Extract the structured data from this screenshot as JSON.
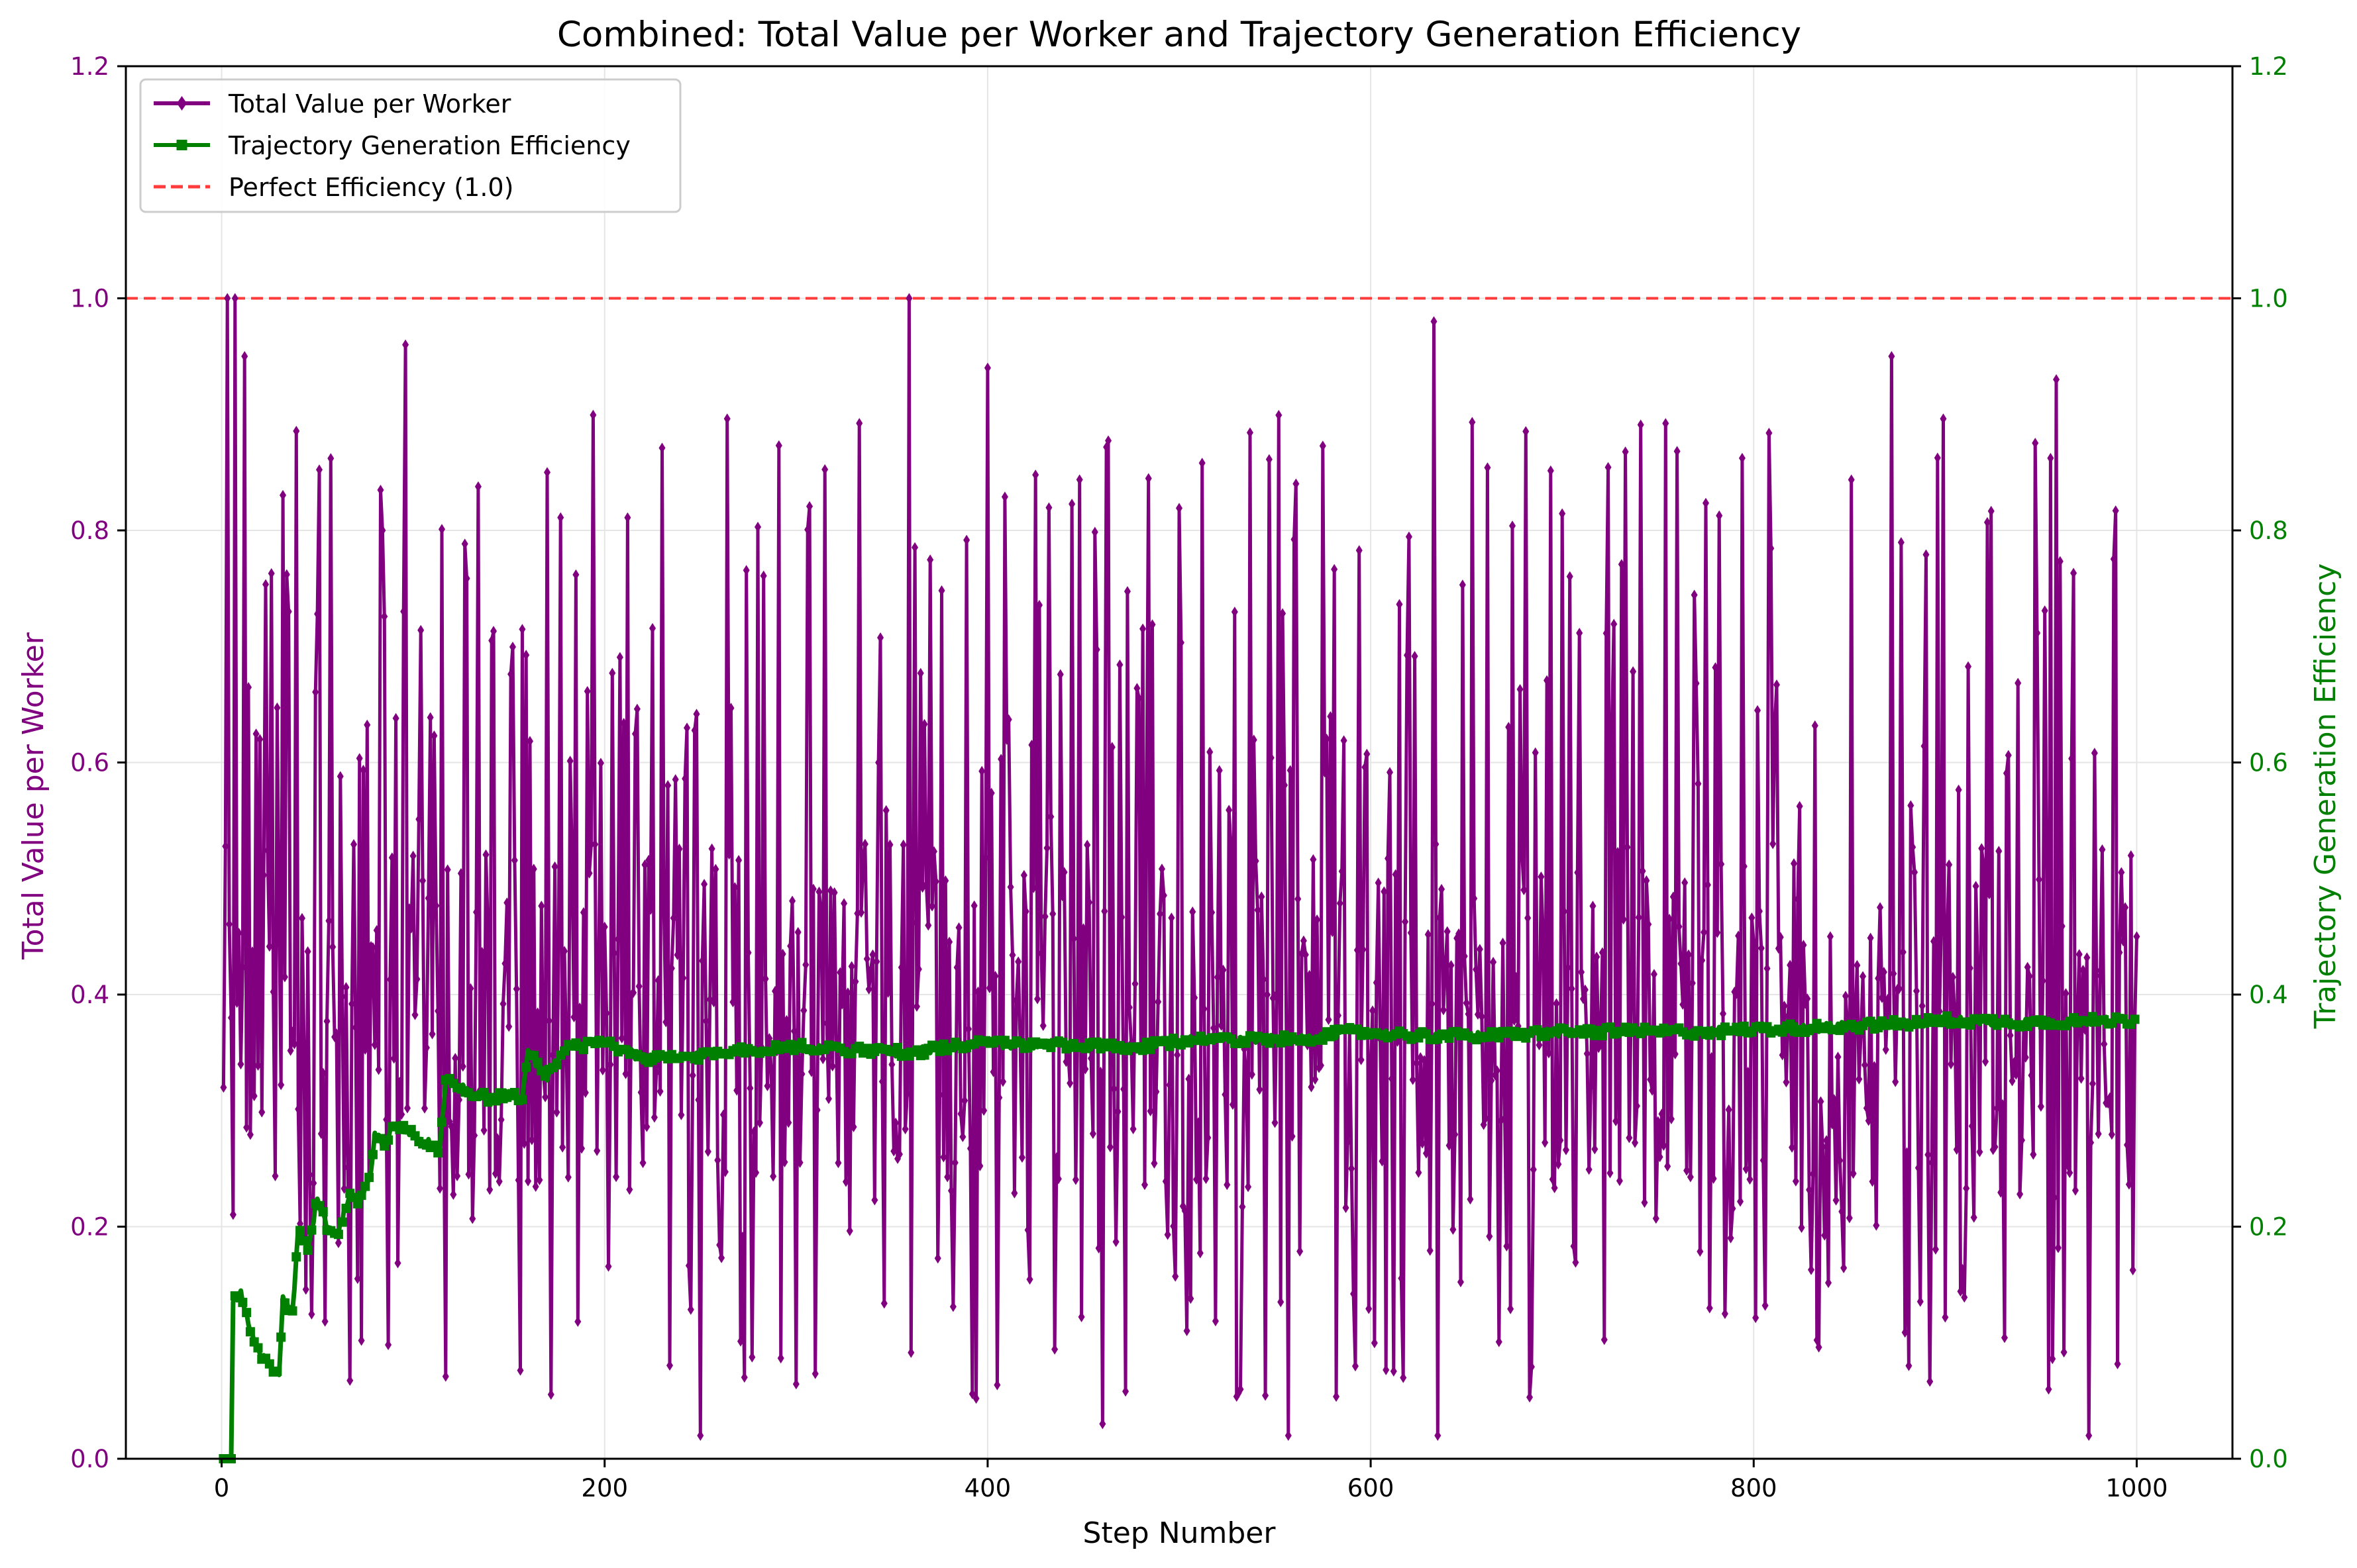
{
  "chart_data": {
    "type": "line",
    "title": "Combined: Total Value per Worker and Trajectory Generation Efficiency",
    "xlabel": "Step Number",
    "ylabel_left": "Total Value per Worker",
    "ylabel_right": "Trajectory Generation Efficiency",
    "xlim": [
      -50,
      1050
    ],
    "ylim_left": [
      0.0,
      1.2
    ],
    "ylim_right": [
      0.0,
      1.2
    ],
    "xticks": [
      0,
      200,
      400,
      600,
      800,
      1000
    ],
    "yticks_left": [
      "0.0",
      "0.2",
      "0.4",
      "0.6",
      "0.8",
      "1.0",
      "1.2"
    ],
    "yticks_right": [
      "0.0",
      "0.2",
      "0.4",
      "0.6",
      "0.8",
      "1.0",
      "1.2"
    ],
    "grid": true,
    "legend_position": "top-left",
    "colors": {
      "value": "#800080",
      "efficiency": "#008000",
      "reference": "#ff3b3b",
      "grid": "#e5e5e5"
    },
    "reference_line": {
      "name": "Perfect Efficiency (1.0)",
      "y": 1.0,
      "style": "dashed"
    },
    "series": [
      {
        "name": "Total Value per Worker",
        "axis": "left",
        "marker": "diamond",
        "x_start": 1,
        "x_step": 1,
        "note_generation": "1000 steps, oscillating between ~0.02 and ~1.0 with mean ~0.38",
        "key_points": [
          {
            "x": 1,
            "y": 0.32
          },
          {
            "x": 3,
            "y": 1.0
          },
          {
            "x": 5,
            "y": 0.38
          },
          {
            "x": 7,
            "y": 1.0
          },
          {
            "x": 10,
            "y": 0.34
          },
          {
            "x": 12,
            "y": 0.95
          },
          {
            "x": 20,
            "y": 0.62
          },
          {
            "x": 35,
            "y": 0.73
          },
          {
            "x": 84,
            "y": 0.8
          },
          {
            "x": 96,
            "y": 0.96
          },
          {
            "x": 170,
            "y": 0.85
          },
          {
            "x": 250,
            "y": 0.02
          },
          {
            "x": 359,
            "y": 1.0
          },
          {
            "x": 400,
            "y": 0.94
          },
          {
            "x": 460,
            "y": 0.03
          },
          {
            "x": 557,
            "y": 0.02
          },
          {
            "x": 633,
            "y": 0.98
          },
          {
            "x": 635,
            "y": 0.02
          },
          {
            "x": 872,
            "y": 0.95
          },
          {
            "x": 958,
            "y": 0.93
          },
          {
            "x": 975,
            "y": 0.02
          },
          {
            "x": 1000,
            "y": 0.45
          }
        ]
      },
      {
        "name": "Trajectory Generation Efficiency",
        "axis": "right",
        "marker": "square",
        "key_points": [
          {
            "x": 1,
            "y": 0.0
          },
          {
            "x": 5,
            "y": 0.0
          },
          {
            "x": 6,
            "y": 0.135
          },
          {
            "x": 10,
            "y": 0.145
          },
          {
            "x": 15,
            "y": 0.11
          },
          {
            "x": 20,
            "y": 0.09
          },
          {
            "x": 25,
            "y": 0.08
          },
          {
            "x": 30,
            "y": 0.075
          },
          {
            "x": 32,
            "y": 0.14
          },
          {
            "x": 37,
            "y": 0.125
          },
          {
            "x": 40,
            "y": 0.2
          },
          {
            "x": 45,
            "y": 0.18
          },
          {
            "x": 50,
            "y": 0.225
          },
          {
            "x": 55,
            "y": 0.2
          },
          {
            "x": 60,
            "y": 0.19
          },
          {
            "x": 67,
            "y": 0.23
          },
          {
            "x": 72,
            "y": 0.22
          },
          {
            "x": 78,
            "y": 0.245
          },
          {
            "x": 80,
            "y": 0.28
          },
          {
            "x": 85,
            "y": 0.27
          },
          {
            "x": 90,
            "y": 0.29
          },
          {
            "x": 100,
            "y": 0.28
          },
          {
            "x": 114,
            "y": 0.265
          },
          {
            "x": 117,
            "y": 0.33
          },
          {
            "x": 125,
            "y": 0.32
          },
          {
            "x": 140,
            "y": 0.31
          },
          {
            "x": 150,
            "y": 0.315
          },
          {
            "x": 157,
            "y": 0.31
          },
          {
            "x": 160,
            "y": 0.35
          },
          {
            "x": 170,
            "y": 0.33
          },
          {
            "x": 180,
            "y": 0.355
          },
          {
            "x": 200,
            "y": 0.358
          },
          {
            "x": 220,
            "y": 0.345
          },
          {
            "x": 240,
            "y": 0.345
          },
          {
            "x": 260,
            "y": 0.35
          },
          {
            "x": 300,
            "y": 0.355
          },
          {
            "x": 340,
            "y": 0.352
          },
          {
            "x": 360,
            "y": 0.35
          },
          {
            "x": 380,
            "y": 0.355
          },
          {
            "x": 400,
            "y": 0.358
          },
          {
            "x": 440,
            "y": 0.356
          },
          {
            "x": 480,
            "y": 0.354
          },
          {
            "x": 500,
            "y": 0.36
          },
          {
            "x": 520,
            "y": 0.362
          },
          {
            "x": 560,
            "y": 0.361
          },
          {
            "x": 590,
            "y": 0.368
          },
          {
            "x": 620,
            "y": 0.365
          },
          {
            "x": 660,
            "y": 0.364
          },
          {
            "x": 700,
            "y": 0.368
          },
          {
            "x": 740,
            "y": 0.368
          },
          {
            "x": 780,
            "y": 0.368
          },
          {
            "x": 800,
            "y": 0.37
          },
          {
            "x": 840,
            "y": 0.372
          },
          {
            "x": 880,
            "y": 0.375
          },
          {
            "x": 900,
            "y": 0.378
          },
          {
            "x": 940,
            "y": 0.376
          },
          {
            "x": 970,
            "y": 0.377
          },
          {
            "x": 1000,
            "y": 0.378
          }
        ]
      }
    ]
  }
}
